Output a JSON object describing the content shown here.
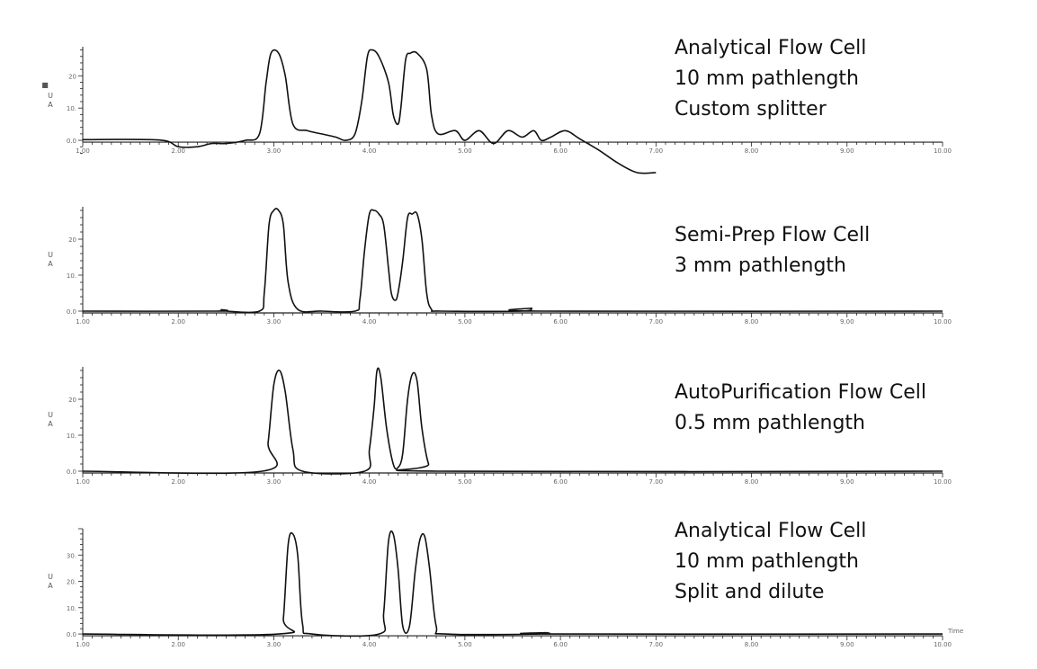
{
  "colors": {
    "trace": "#111111",
    "axis": "#222222",
    "tick_text": "#666666",
    "annotation": "#111111"
  },
  "chart_data": [
    {
      "type": "line",
      "ylabel": "UA",
      "ylabel_marker": "■",
      "xlim": [
        1.0,
        10.0
      ],
      "ylim": [
        -5,
        29
      ],
      "xticks": [
        1.0,
        2.0,
        3.0,
        4.0,
        5.0,
        6.0,
        7.0,
        8.0,
        9.0,
        10.0
      ],
      "xtick_labels": [
        "1.00",
        "2.00",
        "3.00",
        "4.00",
        "5.00",
        "6.00",
        "7.00",
        "8.00",
        "9.00",
        "10.00"
      ],
      "yticks": [
        0,
        10,
        20
      ],
      "ytick_labels": [
        "0.0",
        "10.",
        "20"
      ],
      "annotation": [
        "Analytical Flow Cell",
        "10 mm pathlength",
        "Custom splitter"
      ],
      "series": [
        {
          "x": [
            1.0,
            1.8,
            2.0,
            2.2,
            2.35,
            2.5,
            2.7,
            2.85,
            2.92,
            2.97,
            3.05,
            3.12,
            3.2,
            3.35,
            3.5,
            3.65,
            3.75,
            3.85,
            3.92,
            3.98,
            4.03,
            4.1,
            4.2,
            4.25,
            4.3,
            4.33,
            4.38,
            4.43,
            4.5,
            4.6,
            4.65,
            4.72,
            4.9,
            5.0,
            5.15,
            5.3,
            5.45,
            5.6,
            5.72,
            5.8,
            5.9,
            6.05,
            6.2,
            6.4,
            6.6,
            6.8,
            7.0
          ],
          "y": [
            0.2,
            0.1,
            -2,
            -2,
            -1,
            -1,
            0,
            2,
            18,
            27,
            27,
            20,
            5,
            3,
            2,
            1,
            0,
            2,
            12,
            26,
            28,
            26,
            18,
            8,
            5,
            10,
            25,
            27,
            27,
            22,
            8,
            2,
            3,
            0,
            3,
            -1,
            3,
            1,
            3,
            0,
            1,
            3,
            0.5,
            -3,
            -7,
            -10,
            -10
          ]
        }
      ]
    },
    {
      "type": "line",
      "ylabel": "UA",
      "xlim": [
        1.0,
        10.0
      ],
      "ylim": [
        -1,
        29
      ],
      "xticks": [
        1.0,
        2.0,
        3.0,
        4.0,
        5.0,
        6.0,
        7.0,
        8.0,
        9.0,
        10.0
      ],
      "xtick_labels": [
        "1.00",
        "2.00",
        "3.00",
        "4.00",
        "5.00",
        "6.00",
        "7.00",
        "8.00",
        "9.00",
        "10.00"
      ],
      "yticks": [
        0,
        10,
        20
      ],
      "ytick_labels": [
        "0.0",
        "10.",
        "20"
      ],
      "annotation": [
        "Semi-Prep Flow Cell",
        "3 mm pathlength"
      ],
      "series": [
        {
          "x": [
            1.0,
            2.4,
            2.45,
            2.5,
            2.85,
            2.9,
            2.95,
            3.0,
            3.05,
            3.1,
            3.15,
            3.25,
            3.5,
            3.85,
            3.9,
            3.95,
            4.0,
            4.05,
            4.1,
            4.15,
            4.2,
            4.23,
            4.27,
            4.3,
            4.35,
            4.4,
            4.45,
            4.5,
            4.55,
            4.6,
            4.65,
            4.75,
            5.6,
            5.7,
            5.8,
            10.0
          ],
          "y": [
            0,
            0,
            0.4,
            0,
            0,
            5,
            24,
            28,
            28,
            24,
            8,
            0.5,
            0,
            0,
            3,
            17,
            27,
            28,
            27,
            24,
            12,
            5,
            3,
            5,
            14,
            26,
            27,
            27,
            20,
            5,
            0.5,
            0,
            0,
            0.8,
            0,
            0
          ]
        }
      ]
    },
    {
      "type": "line",
      "ylabel": "UA",
      "xlim": [
        1.0,
        10.0
      ],
      "ylim": [
        -1,
        29
      ],
      "xticks": [
        1.0,
        2.0,
        3.0,
        4.0,
        5.0,
        6.0,
        7.0,
        8.0,
        9.0,
        10.0
      ],
      "xtick_labels": [
        "1.00",
        "2.00",
        "3.00",
        "4.00",
        "5.00",
        "6.00",
        "7.00",
        "8.00",
        "9.00",
        "10.00"
      ],
      "yticks": [
        0,
        10,
        20
      ],
      "ytick_labels": [
        "0.0",
        "10.",
        "20"
      ],
      "annotation": [
        "AutoPurification Flow Cell",
        "0.5 mm pathlength"
      ],
      "series": [
        {
          "x": [
            1.0,
            2.88,
            2.94,
            3.0,
            3.06,
            3.12,
            3.2,
            3.3,
            3.95,
            4.0,
            4.05,
            4.08,
            4.12,
            4.18,
            4.25,
            4.3,
            4.35,
            4.4,
            4.45,
            4.5,
            4.55,
            4.62,
            4.7,
            10.0
          ],
          "y": [
            0,
            0,
            8,
            24,
            28,
            22,
            6,
            0,
            0,
            6,
            18,
            28,
            26,
            12,
            2,
            1,
            5,
            20,
            27,
            25,
            12,
            2,
            0,
            0
          ]
        }
      ]
    },
    {
      "type": "line",
      "ylabel": "UA",
      "xlim": [
        1.0,
        10.0
      ],
      "ylim": [
        -1,
        40
      ],
      "xticks": [
        1.0,
        2.0,
        3.0,
        4.0,
        5.0,
        6.0,
        7.0,
        8.0,
        9.0,
        10.0
      ],
      "xtick_labels": [
        "1.00",
        "2.00",
        "3.00",
        "4.00",
        "5.00",
        "6.00",
        "7.00",
        "8.00",
        "9.00",
        "10.00"
      ],
      "yticks": [
        0,
        10,
        20,
        30
      ],
      "ytick_labels": [
        "0.0",
        "10.",
        "20.",
        "30."
      ],
      "xlabel": "Time",
      "annotation": [
        "Analytical Flow Cell",
        "10 mm pathlength",
        "Split and dilute"
      ],
      "series": [
        {
          "x": [
            1.0,
            3.05,
            3.1,
            3.15,
            3.2,
            3.25,
            3.3,
            3.4,
            4.1,
            4.15,
            4.2,
            4.25,
            4.3,
            4.35,
            4.42,
            4.48,
            4.53,
            4.58,
            4.63,
            4.7,
            4.8,
            5.8,
            5.85,
            5.9,
            10.0
          ],
          "y": [
            0,
            0,
            6,
            34,
            38,
            30,
            4,
            0,
            0,
            8,
            35,
            38,
            25,
            3,
            3,
            24,
            36,
            37,
            25,
            3,
            0,
            0,
            0.5,
            0,
            0
          ]
        }
      ]
    }
  ]
}
